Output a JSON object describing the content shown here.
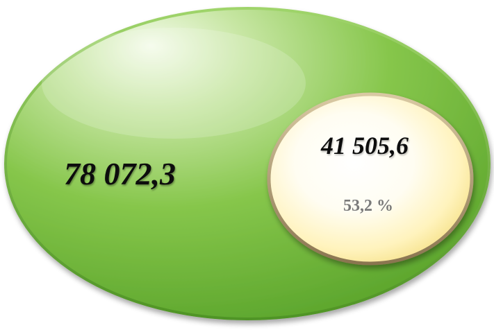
{
  "diagram": {
    "outer": {
      "value": "78 072,3",
      "fill_color": "#7cc043",
      "highlight_color": "#dff2c8"
    },
    "inner": {
      "value": "41 505,6",
      "share": "53,2 %",
      "fill_color": "#fff6c7",
      "rim_color": "#b5a27a"
    }
  }
}
